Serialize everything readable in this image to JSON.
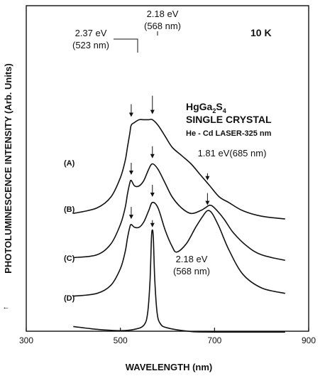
{
  "chart_data": {
    "type": "line",
    "xlabel": "WAVELENGTH  (nm)",
    "ylabel": "PHOTOLUMINESCENCE  INTENSITY  (Arb. Units)",
    "xlim": [
      300,
      900
    ],
    "x_ticks": [
      "300",
      "500",
      "700",
      "900"
    ],
    "y_ticks": false,
    "grid": false,
    "legend": "none",
    "annotations": {
      "temp": "10 K",
      "material": "HgGa2S4",
      "material_base": "HgGa",
      "material_sub1": "2",
      "material_mid": "S",
      "material_sub2": "4",
      "crystal": "SINGLE CRYSTAL",
      "laser": "He - Cd LASER-325 nm",
      "peak_237_ev": "2.37 eV",
      "peak_237_nm": "(523 nm)",
      "peak_218_ev": "2.18 eV",
      "peak_218_nm": "(568 nm)",
      "peak_181": "1.81 eV(685 nm)",
      "peak_d_ev": "2.18 eV",
      "peak_d_nm": "(568 nm)"
    },
    "series": [
      {
        "name": "(A)",
        "x": [
          400,
          450,
          480,
          500,
          510,
          515,
          520,
          523,
          530,
          540,
          550,
          560,
          568,
          580,
          595,
          610,
          630,
          650,
          670,
          690,
          710,
          730,
          760,
          800,
          850
        ],
        "y": [
          36,
          38,
          42,
          49,
          55,
          60,
          65,
          68,
          69,
          70,
          70,
          70,
          70,
          68,
          64,
          60,
          57,
          54,
          50,
          46,
          42,
          40,
          37,
          35,
          34
        ]
      },
      {
        "name": "(B)",
        "x": [
          400,
          450,
          480,
          500,
          510,
          515,
          520,
          523,
          530,
          540,
          550,
          560,
          568,
          580,
          595,
          610,
          630,
          650,
          670,
          680,
          690,
          700,
          720,
          740,
          770,
          800,
          850
        ],
        "y": [
          20,
          21,
          25,
          32,
          38,
          43,
          47,
          48,
          46,
          46,
          48,
          52,
          54,
          52,
          47,
          42,
          38,
          36,
          37,
          38,
          39,
          38,
          34,
          29,
          24,
          21,
          19
        ]
      },
      {
        "name": "(C)",
        "x": [
          400,
          450,
          480,
          500,
          510,
          515,
          520,
          523,
          530,
          540,
          550,
          560,
          568,
          580,
          595,
          610,
          620,
          640,
          660,
          675,
          685,
          695,
          710,
          730,
          760,
          800,
          850
        ],
        "y": [
          6,
          7,
          10,
          16,
          22,
          27,
          31,
          32,
          31,
          31,
          33,
          37,
          40,
          38,
          30,
          24,
          22,
          25,
          31,
          35,
          37,
          36,
          31,
          23,
          14,
          9,
          7
        ]
      },
      {
        "name": "(D)",
        "x": [
          400,
          450,
          500,
          530,
          550,
          558,
          563,
          566,
          568,
          570,
          573,
          578,
          585,
          600,
          650,
          700,
          850
        ],
        "y": [
          -5,
          -6,
          -6.5,
          -6,
          -4.5,
          0,
          12,
          27,
          30,
          27,
          12,
          0,
          -4,
          -5.5,
          -6.8,
          -7,
          -7
        ]
      }
    ]
  }
}
